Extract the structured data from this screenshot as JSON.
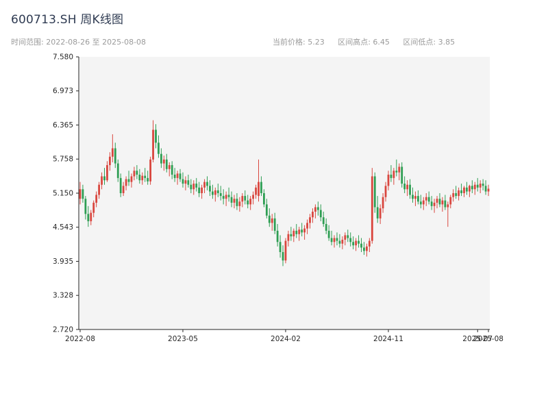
{
  "header": {
    "title": "600713.SH 周K线图",
    "time_range": {
      "label": "时间范围",
      "start": "2022-08-26",
      "end": "2025-08-08",
      "text": "时间范围: 2022-08-26 至 2025-08-08"
    },
    "stats": [
      {
        "label": "当前价格",
        "value": "5.23",
        "text": "当前价格: 5.23"
      },
      {
        "label": "区间高点",
        "value": "6.45",
        "text": "区间高点: 6.45"
      },
      {
        "label": "区间低点",
        "value": "3.85",
        "text": "区间低点: 3.85"
      }
    ]
  },
  "chart_data": {
    "type": "candlestick",
    "title": "600713.SH 周K线图",
    "period": "weekly",
    "current_price": 5.23,
    "range_high": 6.45,
    "range_low": 3.85,
    "ylim": [
      2.72,
      7.58
    ],
    "y_ticks": [
      "7.580",
      "6.973",
      "6.365",
      "5.758",
      "5.150",
      "4.543",
      "3.935",
      "3.328",
      "2.720"
    ],
    "x_ticks": [
      {
        "index": 0,
        "label": "2022-08"
      },
      {
        "index": 38,
        "label": "2023-05"
      },
      {
        "index": 76,
        "label": "2024-02"
      },
      {
        "index": 114,
        "label": "2024-11"
      },
      {
        "index": 147,
        "label": "2025-07"
      },
      {
        "index": 151,
        "label": "2025-08"
      }
    ],
    "colors": {
      "up": "#d9463e",
      "down": "#2e9e53",
      "axis": "#262626",
      "label": "#262626",
      "panel": "#f4f4f4",
      "title": "#2f3b52",
      "subtitle": "#9b9b9b"
    },
    "candles": [
      [
        5.05,
        5.35,
        4.95,
        5.22
      ],
      [
        5.22,
        5.3,
        4.98,
        5.05
      ],
      [
        5.05,
        5.1,
        4.68,
        4.78
      ],
      [
        4.78,
        4.92,
        4.55,
        4.65
      ],
      [
        4.65,
        4.85,
        4.58,
        4.8
      ],
      [
        4.8,
        5.02,
        4.72,
        4.98
      ],
      [
        4.98,
        5.18,
        4.9,
        5.12
      ],
      [
        5.12,
        5.35,
        5.05,
        5.3
      ],
      [
        5.3,
        5.52,
        5.22,
        5.45
      ],
      [
        5.45,
        5.6,
        5.3,
        5.38
      ],
      [
        5.38,
        5.72,
        5.35,
        5.65
      ],
      [
        5.65,
        5.88,
        5.55,
        5.8
      ],
      [
        5.8,
        6.2,
        5.7,
        5.95
      ],
      [
        5.95,
        6.05,
        5.6,
        5.68
      ],
      [
        5.68,
        5.75,
        5.35,
        5.42
      ],
      [
        5.42,
        5.5,
        5.08,
        5.15
      ],
      [
        5.15,
        5.35,
        5.1,
        5.28
      ],
      [
        5.28,
        5.45,
        5.2,
        5.4
      ],
      [
        5.4,
        5.55,
        5.28,
        5.35
      ],
      [
        5.35,
        5.5,
        5.25,
        5.45
      ],
      [
        5.45,
        5.62,
        5.38,
        5.55
      ],
      [
        5.55,
        5.65,
        5.4,
        5.48
      ],
      [
        5.48,
        5.58,
        5.32,
        5.38
      ],
      [
        5.38,
        5.52,
        5.3,
        5.46
      ],
      [
        5.46,
        5.6,
        5.35,
        5.42
      ],
      [
        5.42,
        5.55,
        5.3,
        5.36
      ],
      [
        5.36,
        5.8,
        5.3,
        5.75
      ],
      [
        5.75,
        6.45,
        5.7,
        6.28
      ],
      [
        6.28,
        6.38,
        5.95,
        6.05
      ],
      [
        6.05,
        6.18,
        5.78,
        5.85
      ],
      [
        5.85,
        5.95,
        5.6,
        5.68
      ],
      [
        5.68,
        5.82,
        5.55,
        5.75
      ],
      [
        5.75,
        5.85,
        5.52,
        5.58
      ],
      [
        5.58,
        5.7,
        5.45,
        5.65
      ],
      [
        5.65,
        5.72,
        5.4,
        5.48
      ],
      [
        5.48,
        5.6,
        5.35,
        5.42
      ],
      [
        5.42,
        5.55,
        5.3,
        5.5
      ],
      [
        5.5,
        5.58,
        5.35,
        5.4
      ],
      [
        5.4,
        5.52,
        5.25,
        5.32
      ],
      [
        5.32,
        5.45,
        5.2,
        5.38
      ],
      [
        5.38,
        5.48,
        5.25,
        5.3
      ],
      [
        5.3,
        5.4,
        5.15,
        5.22
      ],
      [
        5.22,
        5.38,
        5.12,
        5.32
      ],
      [
        5.32,
        5.42,
        5.18,
        5.25
      ],
      [
        5.25,
        5.35,
        5.08,
        5.15
      ],
      [
        5.15,
        5.3,
        5.05,
        5.25
      ],
      [
        5.25,
        5.4,
        5.15,
        5.35
      ],
      [
        5.35,
        5.45,
        5.2,
        5.28
      ],
      [
        5.28,
        5.38,
        5.1,
        5.18
      ],
      [
        5.18,
        5.3,
        5.05,
        5.12
      ],
      [
        5.12,
        5.25,
        5.0,
        5.2
      ],
      [
        5.2,
        5.32,
        5.08,
        5.15
      ],
      [
        5.15,
        5.28,
        5.02,
        5.1
      ],
      [
        5.1,
        5.22,
        4.95,
        5.05
      ],
      [
        5.05,
        5.18,
        4.92,
        5.12
      ],
      [
        5.12,
        5.25,
        5.0,
        5.08
      ],
      [
        5.08,
        5.18,
        4.9,
        4.98
      ],
      [
        4.98,
        5.12,
        4.88,
        5.05
      ],
      [
        5.05,
        5.15,
        4.85,
        4.92
      ],
      [
        4.92,
        5.08,
        4.82,
        5.0
      ],
      [
        5.0,
        5.15,
        4.9,
        5.1
      ],
      [
        5.1,
        5.2,
        4.95,
        5.02
      ],
      [
        5.02,
        5.12,
        4.88,
        4.95
      ],
      [
        4.95,
        5.1,
        4.85,
        5.05
      ],
      [
        5.05,
        5.18,
        4.95,
        5.12
      ],
      [
        5.12,
        5.3,
        5.05,
        5.25
      ],
      [
        5.1,
        5.75,
        5.0,
        5.35
      ],
      [
        5.35,
        5.45,
        5.1,
        5.15
      ],
      [
        5.15,
        5.22,
        4.9,
        4.95
      ],
      [
        4.95,
        5.05,
        4.7,
        4.75
      ],
      [
        4.75,
        4.88,
        4.55,
        4.62
      ],
      [
        4.62,
        4.78,
        4.48,
        4.7
      ],
      [
        4.7,
        4.8,
        4.42,
        4.48
      ],
      [
        4.48,
        4.6,
        4.2,
        4.28
      ],
      [
        4.28,
        4.4,
        4.0,
        4.1
      ],
      [
        4.1,
        4.22,
        3.85,
        3.95
      ],
      [
        3.95,
        4.35,
        3.9,
        4.3
      ],
      [
        4.3,
        4.48,
        4.2,
        4.42
      ],
      [
        4.42,
        4.55,
        4.3,
        4.38
      ],
      [
        4.38,
        4.52,
        4.28,
        4.48
      ],
      [
        4.48,
        4.6,
        4.35,
        4.42
      ],
      [
        4.42,
        4.55,
        4.3,
        4.5
      ],
      [
        4.5,
        4.62,
        4.38,
        4.45
      ],
      [
        4.45,
        4.58,
        4.32,
        4.52
      ],
      [
        4.52,
        4.68,
        4.42,
        4.62
      ],
      [
        4.62,
        4.78,
        4.52,
        4.72
      ],
      [
        4.72,
        4.88,
        4.62,
        4.82
      ],
      [
        4.82,
        4.95,
        4.7,
        4.9
      ],
      [
        4.9,
        5.0,
        4.75,
        4.85
      ],
      [
        4.85,
        4.95,
        4.65,
        4.72
      ],
      [
        4.72,
        4.82,
        4.55,
        4.6
      ],
      [
        4.6,
        4.7,
        4.42,
        4.48
      ],
      [
        4.48,
        4.58,
        4.3,
        4.35
      ],
      [
        4.35,
        4.48,
        4.22,
        4.28
      ],
      [
        4.28,
        4.4,
        4.18,
        4.35
      ],
      [
        4.35,
        4.45,
        4.22,
        4.3
      ],
      [
        4.3,
        4.42,
        4.18,
        4.25
      ],
      [
        4.25,
        4.38,
        4.15,
        4.32
      ],
      [
        4.32,
        4.45,
        4.22,
        4.4
      ],
      [
        4.4,
        4.5,
        4.28,
        4.35
      ],
      [
        4.35,
        4.45,
        4.2,
        4.28
      ],
      [
        4.28,
        4.38,
        4.15,
        4.22
      ],
      [
        4.22,
        4.35,
        4.12,
        4.3
      ],
      [
        4.3,
        4.4,
        4.18,
        4.25
      ],
      [
        4.25,
        4.35,
        4.1,
        4.18
      ],
      [
        4.18,
        4.28,
        4.05,
        4.12
      ],
      [
        4.12,
        4.25,
        4.02,
        4.2
      ],
      [
        4.2,
        4.35,
        4.1,
        4.3
      ],
      [
        4.3,
        5.6,
        4.25,
        5.45
      ],
      [
        5.45,
        5.52,
        4.8,
        4.9
      ],
      [
        4.9,
        5.1,
        4.62,
        4.7
      ],
      [
        4.7,
        4.95,
        4.6,
        4.88
      ],
      [
        4.88,
        5.15,
        4.8,
        5.08
      ],
      [
        5.08,
        5.35,
        5.0,
        5.28
      ],
      [
        5.28,
        5.55,
        5.2,
        5.48
      ],
      [
        5.48,
        5.65,
        5.35,
        5.42
      ],
      [
        5.42,
        5.6,
        5.3,
        5.55
      ],
      [
        5.55,
        5.75,
        5.45,
        5.52
      ],
      [
        5.52,
        5.68,
        5.38,
        5.62
      ],
      [
        5.62,
        5.7,
        5.25,
        5.32
      ],
      [
        5.32,
        5.45,
        5.15,
        5.22
      ],
      [
        5.22,
        5.38,
        5.1,
        5.3
      ],
      [
        5.3,
        5.4,
        5.05,
        5.12
      ],
      [
        5.12,
        5.25,
        4.98,
        5.05
      ],
      [
        5.05,
        5.18,
        4.92,
        5.1
      ],
      [
        5.1,
        5.2,
        4.95,
        5.0
      ],
      [
        5.0,
        5.12,
        4.88,
        4.95
      ],
      [
        4.95,
        5.08,
        4.85,
        5.02
      ],
      [
        5.02,
        5.15,
        4.92,
        5.08
      ],
      [
        5.08,
        5.18,
        4.95,
        5.0
      ],
      [
        5.0,
        5.1,
        4.85,
        4.92
      ],
      [
        4.92,
        5.05,
        4.8,
        4.98
      ],
      [
        4.98,
        5.1,
        4.88,
        5.05
      ],
      [
        5.05,
        5.15,
        4.9,
        4.95
      ],
      [
        4.95,
        5.08,
        4.82,
        5.02
      ],
      [
        5.02,
        5.12,
        4.85,
        4.9
      ],
      [
        4.9,
        5.0,
        4.55,
        4.95
      ],
      [
        4.95,
        5.12,
        4.88,
        5.08
      ],
      [
        5.08,
        5.22,
        5.0,
        5.15
      ],
      [
        5.15,
        5.28,
        5.05,
        5.1
      ],
      [
        5.1,
        5.25,
        5.02,
        5.2
      ],
      [
        5.2,
        5.32,
        5.1,
        5.15
      ],
      [
        5.15,
        5.28,
        5.08,
        5.25
      ],
      [
        5.25,
        5.35,
        5.12,
        5.18
      ],
      [
        5.18,
        5.3,
        5.08,
        5.28
      ],
      [
        5.28,
        5.38,
        5.15,
        5.22
      ],
      [
        5.22,
        5.35,
        5.12,
        5.3
      ],
      [
        5.3,
        5.42,
        5.18,
        5.25
      ],
      [
        5.25,
        5.38,
        5.15,
        5.32
      ],
      [
        5.32,
        5.4,
        5.2,
        5.28
      ],
      [
        5.28,
        5.38,
        5.12,
        5.18
      ],
      [
        5.18,
        5.3,
        5.1,
        5.23
      ]
    ]
  }
}
